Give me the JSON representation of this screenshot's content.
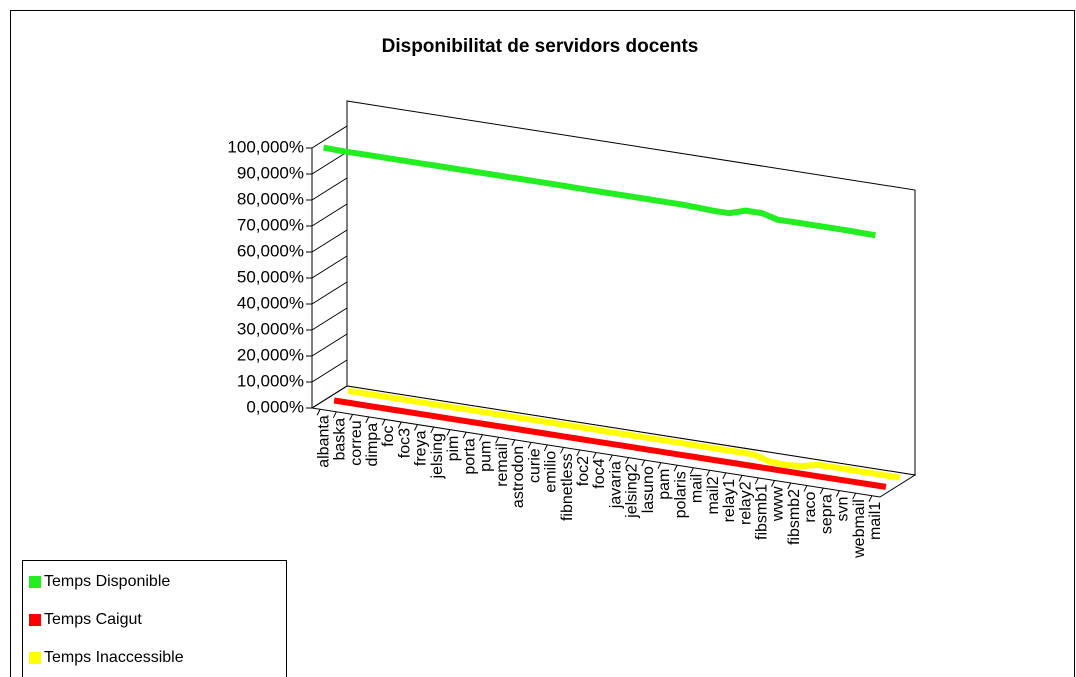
{
  "chart_data": {
    "type": "line3d",
    "title": "Disponibilitat de servidors docents",
    "categories": [
      "albanta",
      "baska",
      "correu",
      "dimpa",
      "foc",
      "foc3",
      "freya",
      "jelsing",
      "pim",
      "porta",
      "pum",
      "remail",
      "astrodon",
      "curie",
      "emilio",
      "fibnetless",
      "foc2",
      "foc4",
      "javaria",
      "jelsing2",
      "lasuno",
      "pam",
      "polaris",
      "mail",
      "mail2",
      "relay1",
      "relay2",
      "fibsmb1",
      "www",
      "fibsmb2",
      "raco",
      "sepra",
      "svn",
      "webmail",
      "mail1"
    ],
    "series": [
      {
        "name": "Temps Disponible",
        "color": "#22ee22",
        "values": [
          99.8,
          99.6,
          99.6,
          99.6,
          99.6,
          99.6,
          99.6,
          99.6,
          99.6,
          99.6,
          99.6,
          99.6,
          99.6,
          99.6,
          99.6,
          99.6,
          99.5,
          99.5,
          99.5,
          99.5,
          99.5,
          99.5,
          99.5,
          99.3,
          99.0,
          99.0,
          101.0,
          101.0,
          99.4,
          99.5,
          99.5,
          99.5,
          99.5,
          99.4,
          99.3
        ]
      },
      {
        "name": "Temps Caigut",
        "color": "#ff0000",
        "values": [
          0,
          0,
          0,
          0,
          0,
          0,
          0,
          0,
          0,
          0,
          0,
          0,
          0,
          0,
          0,
          0,
          0,
          0,
          0,
          0,
          0,
          0,
          0,
          0,
          0,
          0,
          0,
          0,
          0,
          0,
          0,
          0,
          0,
          0,
          0
        ]
      },
      {
        "name": "Temps Inaccessible",
        "color": "#ffff00",
        "values": [
          0.3,
          0.3,
          0.3,
          0.3,
          0.3,
          0.3,
          0.3,
          0.3,
          0.3,
          0.3,
          0.3,
          0.3,
          0.3,
          0.3,
          0.3,
          0.3,
          0.3,
          0.3,
          0.3,
          0.3,
          0.3,
          0.3,
          0.3,
          0.3,
          0.3,
          0.3,
          -1.5,
          -1.8,
          -1.2,
          0.2,
          0.2,
          0.2,
          0.2,
          0.2,
          0.2
        ]
      }
    ],
    "ylim": [
      0,
      100
    ],
    "yticks": [
      {
        "value": 0,
        "label": "0,000%"
      },
      {
        "value": 10,
        "label": "10,000%"
      },
      {
        "value": 20,
        "label": "20,000%"
      },
      {
        "value": 30,
        "label": "30,000%"
      },
      {
        "value": 40,
        "label": "40,000%"
      },
      {
        "value": 50,
        "label": "50,000%"
      },
      {
        "value": 60,
        "label": "60,000%"
      },
      {
        "value": 70,
        "label": "70,000%"
      },
      {
        "value": 80,
        "label": "80,000%"
      },
      {
        "value": 90,
        "label": "90,000%"
      },
      {
        "value": 100,
        "label": "100,000%"
      }
    ]
  }
}
